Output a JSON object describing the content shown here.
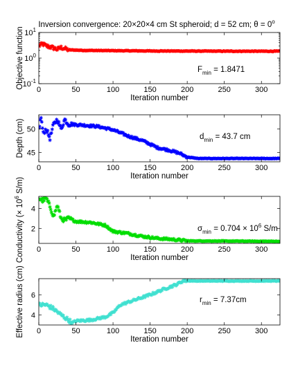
{
  "title": "Inversion convergence: 20×20×4 cm St spheroid; d = 52 cm; θ = 0",
  "title_degree": "o",
  "colors": {
    "objective": "#ff0000",
    "depth": "#0000ff",
    "conductivity": "#00dd00",
    "radius": "#40e0d0"
  },
  "chart_data": [
    {
      "type": "scatter",
      "id": "objective",
      "marker": "asterisk",
      "xlabel": "Iteration number",
      "ylabel": "Objective function",
      "xlim": [
        0,
        325
      ],
      "ylim": [
        0.1,
        10
      ],
      "yscale": "log",
      "xticks": [
        0,
        50,
        100,
        150,
        200,
        250,
        300
      ],
      "yticks": [
        {
          "base": "10",
          "exp": "-1",
          "value": 0.1
        },
        {
          "base": "10",
          "exp": "0",
          "value": 1
        },
        {
          "base": "10",
          "exp": "1",
          "value": 10
        }
      ],
      "annotation": {
        "prefix": "F",
        "sub": "min",
        "suffix": " = 1.8471"
      },
      "key_points": [
        [
          0,
          3.0
        ],
        [
          5,
          3.6
        ],
        [
          10,
          3.0
        ],
        [
          20,
          2.5
        ],
        [
          25,
          2.2
        ],
        [
          30,
          2.6
        ],
        [
          40,
          2.1
        ],
        [
          60,
          2.0
        ],
        [
          100,
          1.95
        ],
        [
          150,
          1.9
        ],
        [
          200,
          1.88
        ],
        [
          250,
          1.86
        ],
        [
          325,
          1.85
        ]
      ]
    },
    {
      "type": "scatter",
      "id": "depth",
      "marker": "asterisk",
      "xlabel": "Iteration number",
      "ylabel": "Depth (cm)",
      "xlim": [
        0,
        325
      ],
      "ylim": [
        43,
        53
      ],
      "xticks": [
        0,
        50,
        100,
        150,
        200,
        250,
        300
      ],
      "yticks": [
        {
          "label": "40",
          "value": 40
        },
        {
          "label": "45",
          "value": 45
        },
        {
          "label": "50",
          "value": 50
        }
      ],
      "annotation": {
        "prefix": "d",
        "sub": "min",
        "suffix": " = 43.7 cm"
      },
      "key_points": [
        [
          0,
          50.0
        ],
        [
          3,
          52.5
        ],
        [
          6,
          49.0
        ],
        [
          10,
          50.0
        ],
        [
          15,
          48.0
        ],
        [
          20,
          51.0
        ],
        [
          25,
          52.0
        ],
        [
          30,
          50.0
        ],
        [
          35,
          52.0
        ],
        [
          40,
          51.0
        ],
        [
          60,
          50.8
        ],
        [
          80,
          50.5
        ],
        [
          100,
          49.8
        ],
        [
          120,
          48.5
        ],
        [
          140,
          47.5
        ],
        [
          160,
          46.0
        ],
        [
          175,
          45.5
        ],
        [
          190,
          44.8
        ],
        [
          200,
          44.0
        ],
        [
          215,
          43.7
        ],
        [
          325,
          43.7
        ]
      ]
    },
    {
      "type": "scatter",
      "id": "conductivity",
      "marker": "asterisk",
      "xlabel": "Iteration number",
      "ylabel": "Conductivity (× 10",
      "ylabel_sup": "6",
      "ylabel_suffix": " S/m)",
      "xlim": [
        0,
        325
      ],
      "ylim": [
        0.5,
        5.2
      ],
      "xticks": [
        0,
        50,
        100,
        150,
        200,
        250,
        300
      ],
      "yticks": [
        {
          "label": "2",
          "value": 2
        },
        {
          "label": "4",
          "value": 4
        }
      ],
      "annotation": {
        "prefix": "σ",
        "sub": "min",
        "suffix": " = 0.704 × 10",
        "sup": "6",
        "suffix2": " S/m"
      },
      "key_points": [
        [
          0,
          5.0
        ],
        [
          5,
          4.8
        ],
        [
          10,
          5.0
        ],
        [
          15,
          4.2
        ],
        [
          20,
          3.2
        ],
        [
          25,
          4.3
        ],
        [
          30,
          3.0
        ],
        [
          35,
          2.8
        ],
        [
          40,
          3.0
        ],
        [
          50,
          2.7
        ],
        [
          70,
          2.6
        ],
        [
          90,
          2.3
        ],
        [
          100,
          1.7
        ],
        [
          120,
          1.5
        ],
        [
          140,
          1.2
        ],
        [
          160,
          1.0
        ],
        [
          180,
          0.9
        ],
        [
          200,
          0.75
        ],
        [
          325,
          0.704
        ]
      ]
    },
    {
      "type": "scatter",
      "id": "radius",
      "marker": "asterisk",
      "xlabel": "Iteration number",
      "ylabel": "Effective radius (cm)",
      "xlim": [
        0,
        325
      ],
      "ylim": [
        3,
        7.6
      ],
      "xticks": [
        0,
        50,
        100,
        150,
        200,
        250,
        300
      ],
      "yticks": [
        {
          "label": "4",
          "value": 4
        },
        {
          "label": "6",
          "value": 6
        }
      ],
      "annotation": {
        "prefix": "r",
        "sub": "min",
        "suffix": " = 7.37cm"
      },
      "key_points": [
        [
          0,
          5.0
        ],
        [
          10,
          5.0
        ],
        [
          20,
          4.6
        ],
        [
          30,
          4.0
        ],
        [
          40,
          3.5
        ],
        [
          45,
          3.2
        ],
        [
          50,
          3.4
        ],
        [
          70,
          3.5
        ],
        [
          90,
          3.8
        ],
        [
          100,
          4.2
        ],
        [
          110,
          5.0
        ],
        [
          130,
          5.5
        ],
        [
          150,
          6.0
        ],
        [
          170,
          6.6
        ],
        [
          185,
          7.0
        ],
        [
          195,
          7.4
        ],
        [
          210,
          7.37
        ],
        [
          325,
          7.37
        ]
      ]
    }
  ]
}
